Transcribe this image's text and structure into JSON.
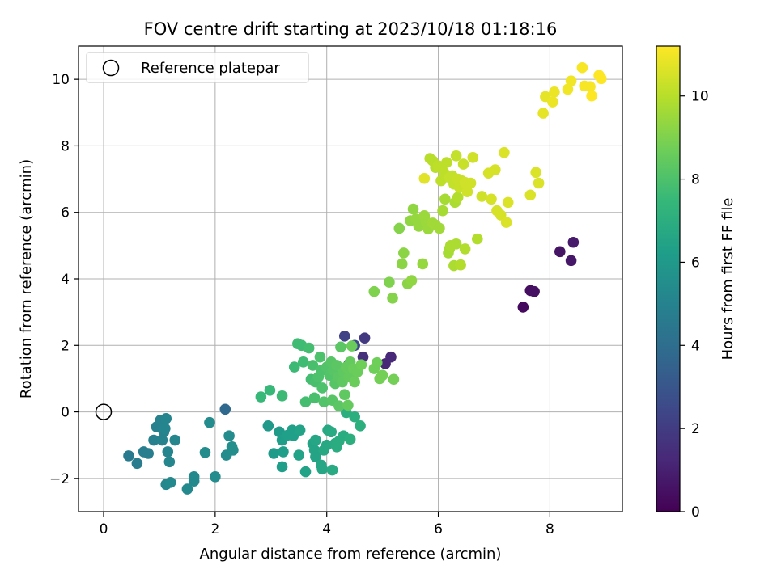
{
  "chart_data": {
    "type": "scatter",
    "title": "FOV centre drift starting at 2023/10/18 01:18:16",
    "xlabel": "Angular distance from reference (arcmin)",
    "ylabel": "Rotation from reference (arcmin)",
    "xlim": [
      -0.45,
      9.3
    ],
    "ylim": [
      -3.0,
      11.0
    ],
    "xticks": [
      0,
      2,
      4,
      6,
      8
    ],
    "yticks": [
      -2,
      0,
      2,
      4,
      6,
      8,
      10
    ],
    "grid": true,
    "legend": {
      "placement": "upper-left",
      "entries": [
        "Reference platepar"
      ]
    },
    "reference_point": {
      "x": 0,
      "y": 0,
      "label": "Reference platepar"
    },
    "colorbar": {
      "label": "Hours from first FF file",
      "colormap": "viridis",
      "range": [
        0,
        11.2
      ],
      "ticks": [
        0,
        2,
        4,
        6,
        8,
        10
      ]
    },
    "colormap_stops": [
      "#440154",
      "#482878",
      "#3e4989",
      "#31688e",
      "#26828e",
      "#1f9e89",
      "#35b779",
      "#6ece58",
      "#b5de2b",
      "#fde725"
    ],
    "points": [
      {
        "x": 7.52,
        "y": 3.15,
        "c": 0.3
      },
      {
        "x": 7.65,
        "y": 3.65,
        "c": 0.4
      },
      {
        "x": 7.72,
        "y": 3.62,
        "c": 0.5
      },
      {
        "x": 8.18,
        "y": 4.82,
        "c": 0.6
      },
      {
        "x": 8.38,
        "y": 4.55,
        "c": 0.7
      },
      {
        "x": 8.42,
        "y": 5.1,
        "c": 0.8
      },
      {
        "x": 5.05,
        "y": 1.45,
        "c": 1.2
      },
      {
        "x": 5.15,
        "y": 1.65,
        "c": 1.3
      },
      {
        "x": 4.65,
        "y": 1.65,
        "c": 1.5
      },
      {
        "x": 4.68,
        "y": 2.22,
        "c": 1.9
      },
      {
        "x": 4.32,
        "y": 2.28,
        "c": 2.3
      },
      {
        "x": 4.5,
        "y": 2.0,
        "c": 2.6
      },
      {
        "x": 4.4,
        "y": 1.45,
        "c": 2.8
      },
      {
        "x": 2.18,
        "y": 0.08,
        "c": 3.8
      },
      {
        "x": 0.45,
        "y": -1.32,
        "c": 4.6
      },
      {
        "x": 0.6,
        "y": -1.55,
        "c": 4.7
      },
      {
        "x": 0.72,
        "y": -1.2,
        "c": 4.8
      },
      {
        "x": 0.8,
        "y": -1.25,
        "c": 4.8
      },
      {
        "x": 0.9,
        "y": -0.85,
        "c": 4.9
      },
      {
        "x": 0.95,
        "y": -0.45,
        "c": 4.9
      },
      {
        "x": 1.02,
        "y": -0.25,
        "c": 5.0
      },
      {
        "x": 1.05,
        "y": -0.85,
        "c": 5.0
      },
      {
        "x": 1.08,
        "y": -0.6,
        "c": 5.0
      },
      {
        "x": 1.1,
        "y": -0.5,
        "c": 5.1
      },
      {
        "x": 1.12,
        "y": -0.2,
        "c": 5.1
      },
      {
        "x": 1.15,
        "y": -1.2,
        "c": 5.1
      },
      {
        "x": 1.18,
        "y": -1.5,
        "c": 5.2
      },
      {
        "x": 1.28,
        "y": -0.85,
        "c": 5.2
      },
      {
        "x": 1.12,
        "y": -2.18,
        "c": 5.2
      },
      {
        "x": 1.2,
        "y": -2.12,
        "c": 5.3
      },
      {
        "x": 1.5,
        "y": -2.32,
        "c": 5.3
      },
      {
        "x": 1.62,
        "y": -2.08,
        "c": 5.3
      },
      {
        "x": 1.62,
        "y": -1.95,
        "c": 5.3
      },
      {
        "x": 1.82,
        "y": -1.22,
        "c": 5.4
      },
      {
        "x": 1.9,
        "y": -0.32,
        "c": 5.4
      },
      {
        "x": 2.0,
        "y": -1.95,
        "c": 5.4
      },
      {
        "x": 2.25,
        "y": -0.72,
        "c": 5.4
      },
      {
        "x": 2.2,
        "y": -1.3,
        "c": 5.4
      },
      {
        "x": 2.3,
        "y": -1.05,
        "c": 5.5
      },
      {
        "x": 2.32,
        "y": -1.15,
        "c": 5.5
      },
      {
        "x": 2.95,
        "y": -0.42,
        "c": 6.0
      },
      {
        "x": 3.05,
        "y": -1.25,
        "c": 6.1
      },
      {
        "x": 3.15,
        "y": -0.6,
        "c": 6.1
      },
      {
        "x": 3.2,
        "y": -0.85,
        "c": 6.2
      },
      {
        "x": 3.22,
        "y": -1.2,
        "c": 6.2
      },
      {
        "x": 3.2,
        "y": -1.65,
        "c": 6.2
      },
      {
        "x": 3.3,
        "y": -0.7,
        "c": 6.3
      },
      {
        "x": 3.38,
        "y": -0.55,
        "c": 6.3
      },
      {
        "x": 3.4,
        "y": -0.72,
        "c": 6.3
      },
      {
        "x": 3.5,
        "y": -1.3,
        "c": 6.4
      },
      {
        "x": 3.52,
        "y": -0.55,
        "c": 6.4
      },
      {
        "x": 3.62,
        "y": -1.8,
        "c": 6.4
      },
      {
        "x": 3.75,
        "y": -0.95,
        "c": 6.5
      },
      {
        "x": 3.78,
        "y": -1.15,
        "c": 6.5
      },
      {
        "x": 3.8,
        "y": -1.35,
        "c": 6.5
      },
      {
        "x": 3.8,
        "y": -0.85,
        "c": 6.6
      },
      {
        "x": 3.9,
        "y": -1.6,
        "c": 6.6
      },
      {
        "x": 3.92,
        "y": -1.72,
        "c": 6.6
      },
      {
        "x": 3.95,
        "y": -1.15,
        "c": 6.7
      },
      {
        "x": 4.0,
        "y": -1.0,
        "c": 6.7
      },
      {
        "x": 4.02,
        "y": -0.55,
        "c": 6.7
      },
      {
        "x": 4.08,
        "y": -0.6,
        "c": 6.8
      },
      {
        "x": 4.1,
        "y": -1.75,
        "c": 6.8
      },
      {
        "x": 4.15,
        "y": -0.95,
        "c": 6.8
      },
      {
        "x": 4.18,
        "y": -1.05,
        "c": 6.9
      },
      {
        "x": 4.22,
        "y": -0.88,
        "c": 6.9
      },
      {
        "x": 4.3,
        "y": -0.72,
        "c": 6.9
      },
      {
        "x": 4.42,
        "y": -0.82,
        "c": 7.0
      },
      {
        "x": 4.5,
        "y": -0.15,
        "c": 7.0
      },
      {
        "x": 4.6,
        "y": -0.42,
        "c": 7.0
      },
      {
        "x": 4.35,
        "y": -0.02,
        "c": 7.0
      },
      {
        "x": 2.82,
        "y": 0.45,
        "c": 7.5
      },
      {
        "x": 2.98,
        "y": 0.65,
        "c": 7.5
      },
      {
        "x": 3.2,
        "y": 0.48,
        "c": 7.6
      },
      {
        "x": 3.42,
        "y": 1.35,
        "c": 7.6
      },
      {
        "x": 3.48,
        "y": 2.05,
        "c": 7.7
      },
      {
        "x": 3.55,
        "y": 2.0,
        "c": 7.7
      },
      {
        "x": 3.58,
        "y": 1.5,
        "c": 7.7
      },
      {
        "x": 3.62,
        "y": 0.3,
        "c": 7.8
      },
      {
        "x": 3.68,
        "y": 1.92,
        "c": 7.8
      },
      {
        "x": 3.72,
        "y": 0.98,
        "c": 7.8
      },
      {
        "x": 3.75,
        "y": 1.4,
        "c": 7.9
      },
      {
        "x": 3.78,
        "y": 0.42,
        "c": 7.9
      },
      {
        "x": 3.8,
        "y": 0.9,
        "c": 7.9
      },
      {
        "x": 3.85,
        "y": 1.05,
        "c": 8.0
      },
      {
        "x": 3.88,
        "y": 1.65,
        "c": 8.0
      },
      {
        "x": 3.9,
        "y": 1.25,
        "c": 8.0
      },
      {
        "x": 3.92,
        "y": 0.72,
        "c": 8.0
      },
      {
        "x": 3.95,
        "y": 0.3,
        "c": 8.1
      },
      {
        "x": 4.0,
        "y": 1.35,
        "c": 8.1
      },
      {
        "x": 4.05,
        "y": 1.1,
        "c": 8.1
      },
      {
        "x": 4.08,
        "y": 1.5,
        "c": 8.2
      },
      {
        "x": 4.1,
        "y": 0.35,
        "c": 8.2
      },
      {
        "x": 4.12,
        "y": 1.25,
        "c": 8.2
      },
      {
        "x": 4.15,
        "y": 0.85,
        "c": 8.2
      },
      {
        "x": 4.18,
        "y": 1.4,
        "c": 8.3
      },
      {
        "x": 4.2,
        "y": 1.05,
        "c": 8.3
      },
      {
        "x": 4.22,
        "y": 0.18,
        "c": 8.3
      },
      {
        "x": 4.25,
        "y": 1.95,
        "c": 8.3
      },
      {
        "x": 4.28,
        "y": 0.9,
        "c": 8.4
      },
      {
        "x": 4.3,
        "y": 1.2,
        "c": 8.4
      },
      {
        "x": 4.32,
        "y": 0.52,
        "c": 8.4
      },
      {
        "x": 4.35,
        "y": 1.35,
        "c": 8.5
      },
      {
        "x": 4.38,
        "y": 0.2,
        "c": 8.5
      },
      {
        "x": 4.4,
        "y": 1.05,
        "c": 8.5
      },
      {
        "x": 4.42,
        "y": 1.5,
        "c": 8.5
      },
      {
        "x": 4.45,
        "y": 1.98,
        "c": 8.6
      },
      {
        "x": 4.48,
        "y": 1.3,
        "c": 8.6
      },
      {
        "x": 4.5,
        "y": 0.9,
        "c": 8.6
      },
      {
        "x": 4.55,
        "y": 1.2,
        "c": 8.6
      },
      {
        "x": 4.62,
        "y": 1.42,
        "c": 8.7
      },
      {
        "x": 4.85,
        "y": 1.3,
        "c": 8.7
      },
      {
        "x": 4.9,
        "y": 1.48,
        "c": 8.7
      },
      {
        "x": 4.95,
        "y": 1.0,
        "c": 8.8
      },
      {
        "x": 5.0,
        "y": 1.1,
        "c": 8.8
      },
      {
        "x": 5.2,
        "y": 0.98,
        "c": 8.8
      },
      {
        "x": 4.85,
        "y": 3.62,
        "c": 9.0
      },
      {
        "x": 5.12,
        "y": 3.9,
        "c": 9.0
      },
      {
        "x": 5.18,
        "y": 3.42,
        "c": 9.1
      },
      {
        "x": 5.3,
        "y": 5.52,
        "c": 9.1
      },
      {
        "x": 5.35,
        "y": 4.45,
        "c": 9.2
      },
      {
        "x": 5.38,
        "y": 4.78,
        "c": 9.2
      },
      {
        "x": 5.45,
        "y": 3.85,
        "c": 9.2
      },
      {
        "x": 5.5,
        "y": 5.75,
        "c": 9.3
      },
      {
        "x": 5.55,
        "y": 6.1,
        "c": 9.3
      },
      {
        "x": 5.52,
        "y": 3.95,
        "c": 9.3
      },
      {
        "x": 5.6,
        "y": 5.8,
        "c": 9.4
      },
      {
        "x": 5.65,
        "y": 5.58,
        "c": 9.4
      },
      {
        "x": 5.72,
        "y": 4.45,
        "c": 9.4
      },
      {
        "x": 5.75,
        "y": 5.9,
        "c": 9.5
      },
      {
        "x": 5.78,
        "y": 5.72,
        "c": 9.5
      },
      {
        "x": 5.82,
        "y": 5.5,
        "c": 9.5
      },
      {
        "x": 5.9,
        "y": 5.68,
        "c": 9.6
      },
      {
        "x": 5.95,
        "y": 5.62,
        "c": 9.6
      },
      {
        "x": 6.02,
        "y": 5.52,
        "c": 9.6
      },
      {
        "x": 6.08,
        "y": 6.05,
        "c": 9.7
      },
      {
        "x": 6.12,
        "y": 6.4,
        "c": 9.7
      },
      {
        "x": 6.18,
        "y": 4.78,
        "c": 9.7
      },
      {
        "x": 6.2,
        "y": 4.9,
        "c": 9.7
      },
      {
        "x": 6.22,
        "y": 5.0,
        "c": 9.8
      },
      {
        "x": 6.28,
        "y": 4.4,
        "c": 9.8
      },
      {
        "x": 6.3,
        "y": 6.3,
        "c": 9.8
      },
      {
        "x": 6.32,
        "y": 5.05,
        "c": 9.8
      },
      {
        "x": 6.35,
        "y": 6.45,
        "c": 9.9
      },
      {
        "x": 6.4,
        "y": 4.42,
        "c": 9.9
      },
      {
        "x": 6.48,
        "y": 4.9,
        "c": 9.9
      },
      {
        "x": 6.7,
        "y": 5.2,
        "c": 9.9
      },
      {
        "x": 5.85,
        "y": 7.62,
        "c": 10.0
      },
      {
        "x": 5.9,
        "y": 7.55,
        "c": 10.0
      },
      {
        "x": 5.95,
        "y": 7.35,
        "c": 10.0
      },
      {
        "x": 6.0,
        "y": 7.4,
        "c": 10.1
      },
      {
        "x": 6.05,
        "y": 6.95,
        "c": 10.1
      },
      {
        "x": 6.1,
        "y": 7.2,
        "c": 10.1
      },
      {
        "x": 6.15,
        "y": 7.5,
        "c": 10.1
      },
      {
        "x": 6.2,
        "y": 7.05,
        "c": 10.2
      },
      {
        "x": 6.25,
        "y": 7.1,
        "c": 10.2
      },
      {
        "x": 6.28,
        "y": 6.85,
        "c": 10.2
      },
      {
        "x": 6.32,
        "y": 7.7,
        "c": 10.2
      },
      {
        "x": 6.35,
        "y": 7.0,
        "c": 10.3
      },
      {
        "x": 6.38,
        "y": 6.75,
        "c": 10.3
      },
      {
        "x": 6.42,
        "y": 6.95,
        "c": 10.3
      },
      {
        "x": 6.45,
        "y": 7.45,
        "c": 10.3
      },
      {
        "x": 6.48,
        "y": 6.9,
        "c": 10.4
      },
      {
        "x": 6.52,
        "y": 6.62,
        "c": 10.4
      },
      {
        "x": 6.58,
        "y": 6.88,
        "c": 10.4
      },
      {
        "x": 6.62,
        "y": 7.65,
        "c": 10.4
      },
      {
        "x": 6.78,
        "y": 6.48,
        "c": 10.4
      },
      {
        "x": 6.9,
        "y": 7.18,
        "c": 10.5
      },
      {
        "x": 6.95,
        "y": 6.4,
        "c": 10.5
      },
      {
        "x": 7.02,
        "y": 7.28,
        "c": 10.5
      },
      {
        "x": 7.05,
        "y": 6.05,
        "c": 10.5
      },
      {
        "x": 7.12,
        "y": 5.92,
        "c": 10.5
      },
      {
        "x": 7.18,
        "y": 7.8,
        "c": 10.6
      },
      {
        "x": 7.22,
        "y": 5.7,
        "c": 10.6
      },
      {
        "x": 7.25,
        "y": 6.3,
        "c": 10.6
      },
      {
        "x": 7.65,
        "y": 6.52,
        "c": 10.6
      },
      {
        "x": 7.75,
        "y": 7.2,
        "c": 10.6
      },
      {
        "x": 7.8,
        "y": 6.88,
        "c": 10.6
      },
      {
        "x": 5.75,
        "y": 7.02,
        "c": 10.7
      },
      {
        "x": 7.88,
        "y": 8.98,
        "c": 10.8
      },
      {
        "x": 7.92,
        "y": 9.48,
        "c": 10.8
      },
      {
        "x": 8.05,
        "y": 9.32,
        "c": 10.9
      },
      {
        "x": 8.08,
        "y": 9.62,
        "c": 10.9
      },
      {
        "x": 8.32,
        "y": 9.7,
        "c": 11.0
      },
      {
        "x": 8.38,
        "y": 9.95,
        "c": 11.0
      },
      {
        "x": 8.58,
        "y": 10.35,
        "c": 11.1
      },
      {
        "x": 8.62,
        "y": 9.8,
        "c": 11.1
      },
      {
        "x": 8.72,
        "y": 9.78,
        "c": 11.1
      },
      {
        "x": 8.75,
        "y": 9.5,
        "c": 11.2
      },
      {
        "x": 8.88,
        "y": 10.12,
        "c": 11.2
      },
      {
        "x": 8.92,
        "y": 10.02,
        "c": 11.2
      }
    ]
  }
}
